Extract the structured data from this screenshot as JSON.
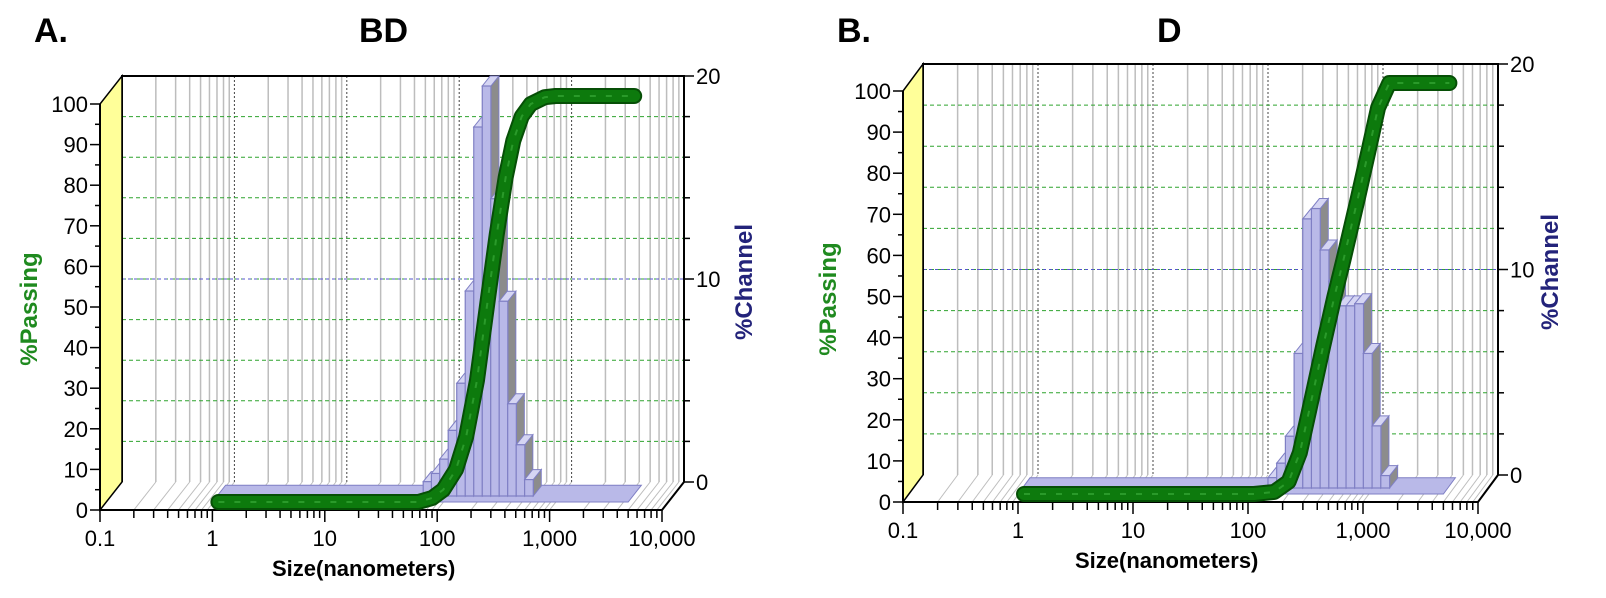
{
  "panels": [
    {
      "letter": "A.",
      "title": "BD",
      "ylabel_left": "%Passing",
      "ylabel_right": "%Channel",
      "xlabel": "Size(nanometers)"
    },
    {
      "letter": "B.",
      "title": "D",
      "ylabel_left": "%Passing",
      "ylabel_right": "%Channel",
      "xlabel": "Size(nanometers)"
    }
  ],
  "colors": {
    "passing_line": "#0d7a0d",
    "histogram_fill": "#b9b9e8",
    "histogram_edge": "#7f7fc4",
    "histogram_side": "#8c8c8c",
    "left_wall": "#ffff99",
    "passing_label": "#1f8a1f",
    "channel_label": "#23237a"
  },
  "chart_data": [
    {
      "type": "bar",
      "title": "BD",
      "xlabel": "Size(nanometers)",
      "x_scale": "log",
      "xlim": [
        0.1,
        10000
      ],
      "x_ticks": [
        "0.1",
        "1",
        "10",
        "100",
        "1,000",
        "10,000"
      ],
      "left_axis": {
        "label": "%Passing",
        "ylim": [
          0,
          100
        ],
        "ticks": [
          "0",
          "10",
          "20",
          "30",
          "40",
          "50",
          "60",
          "70",
          "80",
          "90",
          "100"
        ]
      },
      "right_axis": {
        "label": "%Channel",
        "ylim": [
          0,
          20
        ],
        "ticks": [
          "0",
          "10",
          "20"
        ]
      },
      "series": [
        {
          "name": "%Channel",
          "type": "bar",
          "x": [
            82,
            97,
            115,
            137,
            163,
            194,
            231,
            275,
            327,
            389,
            463,
            551,
            655
          ],
          "values": [
            0.7,
            1.1,
            1.8,
            3.2,
            5.5,
            10.0,
            18.0,
            20.0,
            14.5,
            9.5,
            4.5,
            2.5,
            0.8
          ]
        },
        {
          "name": "%Passing",
          "type": "line",
          "x": [
            1,
            60,
            80,
            100,
            130,
            160,
            200,
            250,
            300,
            360,
            420,
            500,
            600,
            800,
            1000,
            5000
          ],
          "values": [
            0,
            0,
            1,
            3,
            8,
            16,
            30,
            50,
            66,
            80,
            89,
            95,
            98,
            99.7,
            100,
            100
          ]
        }
      ]
    },
    {
      "type": "bar",
      "title": "D",
      "xlabel": "Size(nanometers)",
      "x_scale": "log",
      "xlim": [
        0.1,
        10000
      ],
      "x_ticks": [
        "0.1",
        "1",
        "10",
        "100",
        "1,000",
        "10,000"
      ],
      "left_axis": {
        "label": "%Passing",
        "ylim": [
          0,
          100
        ],
        "ticks": [
          "0",
          "10",
          "20",
          "30",
          "40",
          "50",
          "60",
          "70",
          "80",
          "90",
          "100"
        ]
      },
      "right_axis": {
        "label": "%Channel",
        "ylim": [
          0,
          20
        ],
        "ticks": [
          "0",
          "10",
          "20"
        ]
      },
      "series": [
        {
          "name": "%Channel",
          "type": "bar",
          "x": [
            163,
            194,
            231,
            275,
            327,
            389,
            463,
            551,
            655,
            778,
            925,
            1100,
            1310,
            1560
          ],
          "values": [
            0.5,
            1.2,
            2.5,
            6.5,
            13.0,
            13.5,
            11.5,
            10.0,
            8.8,
            8.8,
            8.9,
            6.5,
            3.0,
            0.6
          ]
        },
        {
          "name": "%Passing",
          "type": "line",
          "x": [
            1,
            100,
            150,
            200,
            250,
            300,
            400,
            500,
            600,
            800,
            1000,
            1200,
            1500,
            5000
          ],
          "values": [
            0,
            0,
            0.5,
            3,
            10,
            20,
            36,
            48,
            57,
            72,
            84,
            94,
            100,
            100
          ]
        }
      ]
    }
  ]
}
